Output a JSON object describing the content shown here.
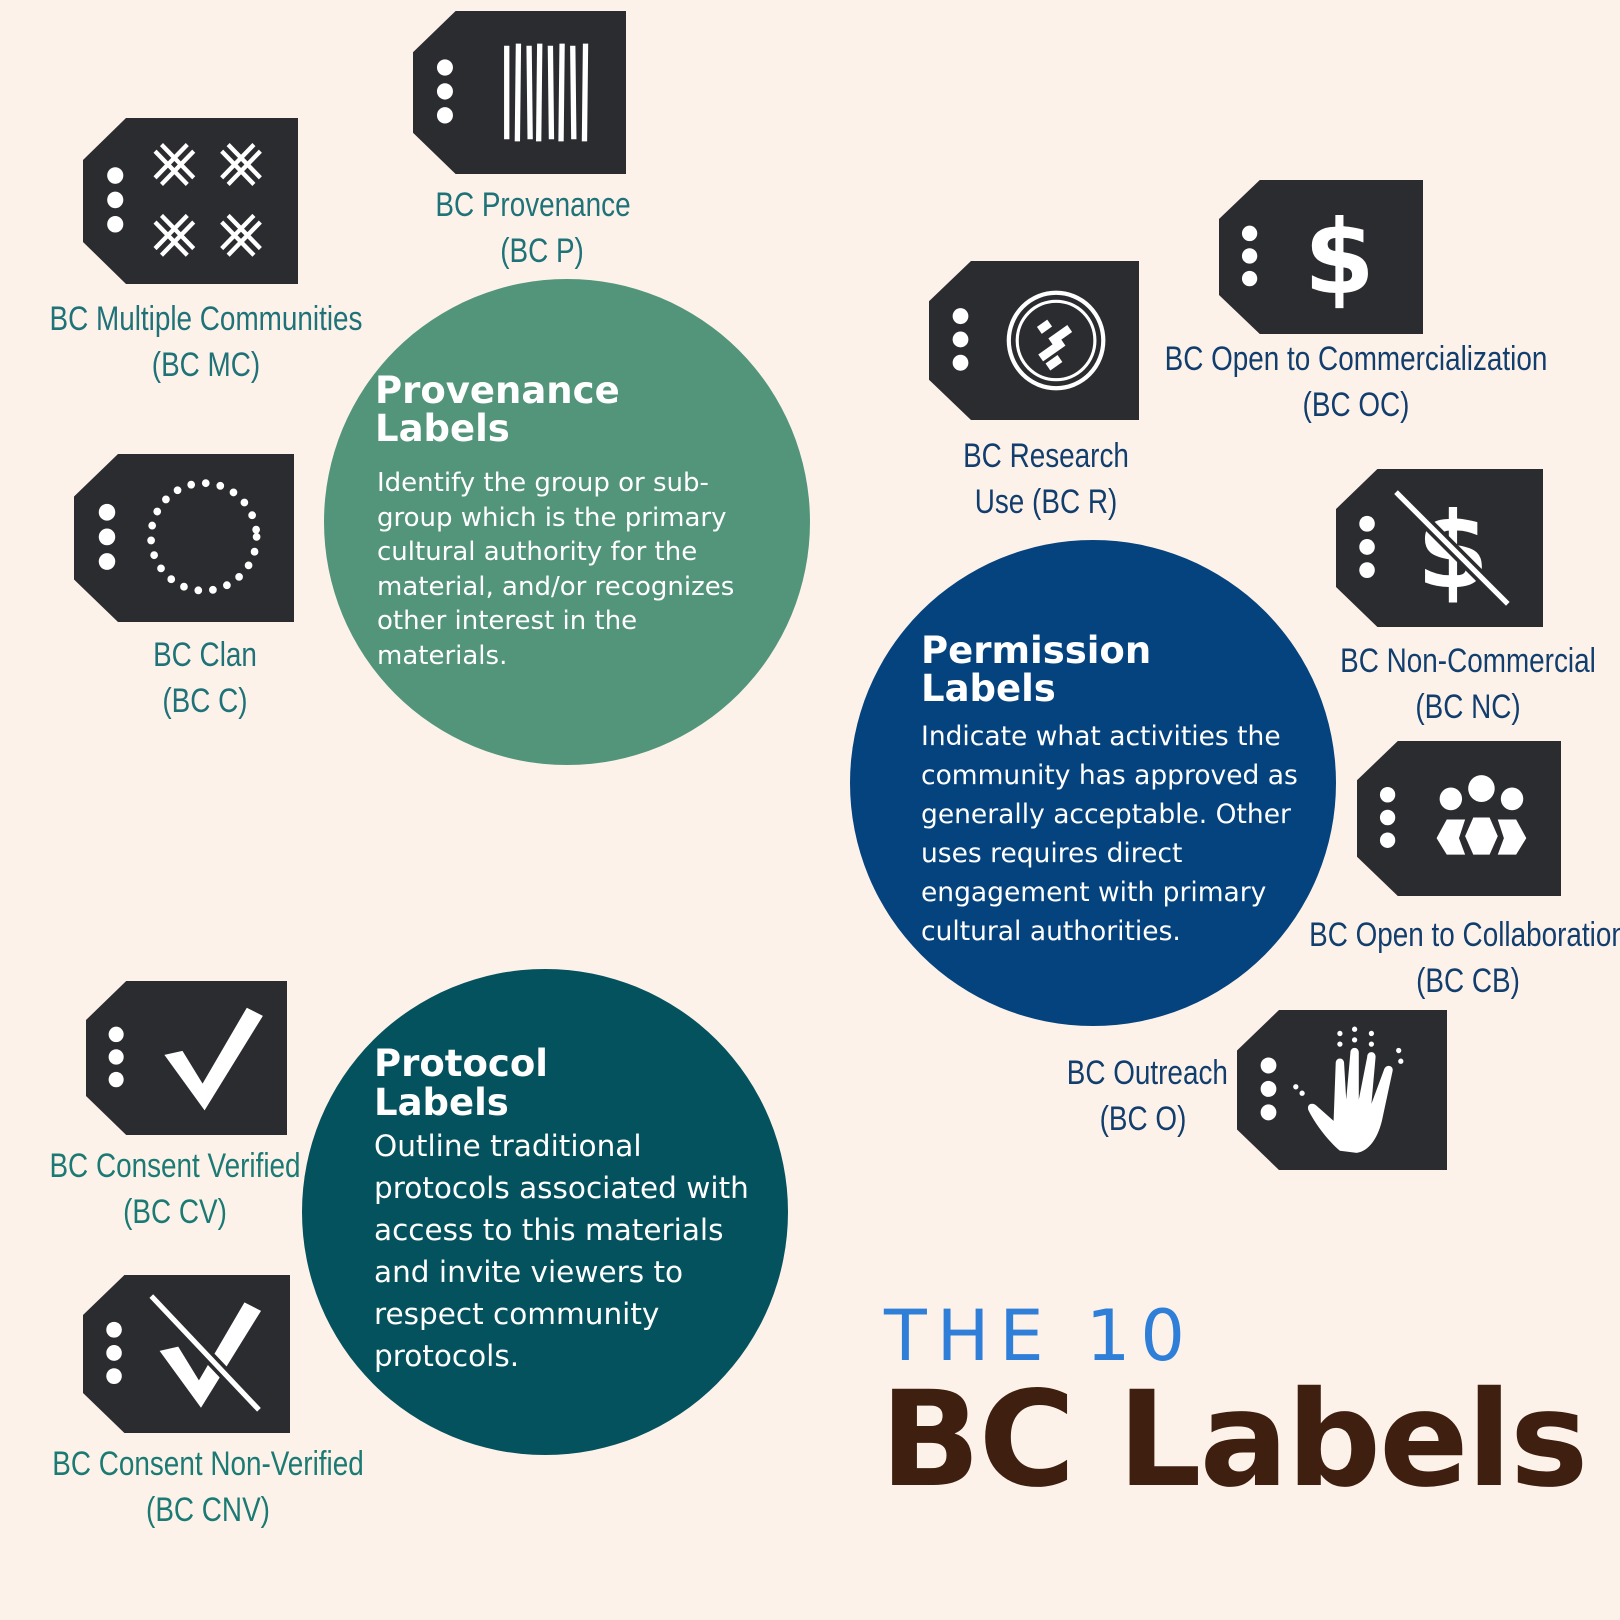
{
  "heading": {
    "prefix": "THE 10",
    "title": "BC Labels"
  },
  "categories": {
    "provenance": {
      "title_line1": "Provenance",
      "title_line2": "Labels",
      "description": "Identify the group or sub-group which is the primary cultural authority for the material, and/or recognizes other interest in the materials.",
      "color": "#53957a"
    },
    "permission": {
      "title_line1": "Permission",
      "title_line2": "Labels",
      "description": "Indicate what activities the community has approved as generally acceptable. Other uses requires direct engagement with primary cultural authorities.",
      "color": "#05437f"
    },
    "protocol": {
      "title_line1": "Protocol",
      "title_line2": "Labels",
      "description": "Outline traditional protocols associated with access to this materials and invite viewers to respect community protocols.",
      "color": "#04525d"
    }
  },
  "labels": {
    "provenance": {
      "line1": "BC Provenance",
      "line2": "(BC P)",
      "icon": "barcode-lines-icon"
    },
    "multiple_communities": {
      "line1": "BC Multiple Communities",
      "line2": "(BC MC)",
      "icon": "woven-pattern-icon"
    },
    "clan": {
      "line1": "BC Clan",
      "line2": "(BC C)",
      "icon": "dotted-circle-icon"
    },
    "research": {
      "line1": "BC Research",
      "line2": "Use (BC R)",
      "icon": "research-emblem-icon"
    },
    "open_commercialization": {
      "line1": "BC Open to Commercialization",
      "line2": "(BC OC)",
      "icon": "dollar-icon"
    },
    "non_commercial": {
      "line1": "BC Non-Commercial",
      "line2": "(BC NC)",
      "icon": "crossed-dollar-icon"
    },
    "open_collaboration": {
      "line1": "BC Open to Collaboration",
      "line2": "(BC CB)",
      "icon": "people-group-icon"
    },
    "outreach": {
      "line1": "BC Outreach",
      "line2": "(BC O)",
      "icon": "hand-icon"
    },
    "consent_verified": {
      "line1": "BC Consent Verified",
      "line2": "(BC CV)",
      "icon": "checkmark-icon"
    },
    "consent_non_verified": {
      "line1": "BC Consent Non-Verified",
      "line2": "(BC CNV)",
      "icon": "crossed-checkmark-icon"
    }
  },
  "colors": {
    "background": "#fdf2ea",
    "tag": "#2b2c2f",
    "heading_small": "#2f7fd8",
    "heading_big": "#3f2010"
  }
}
